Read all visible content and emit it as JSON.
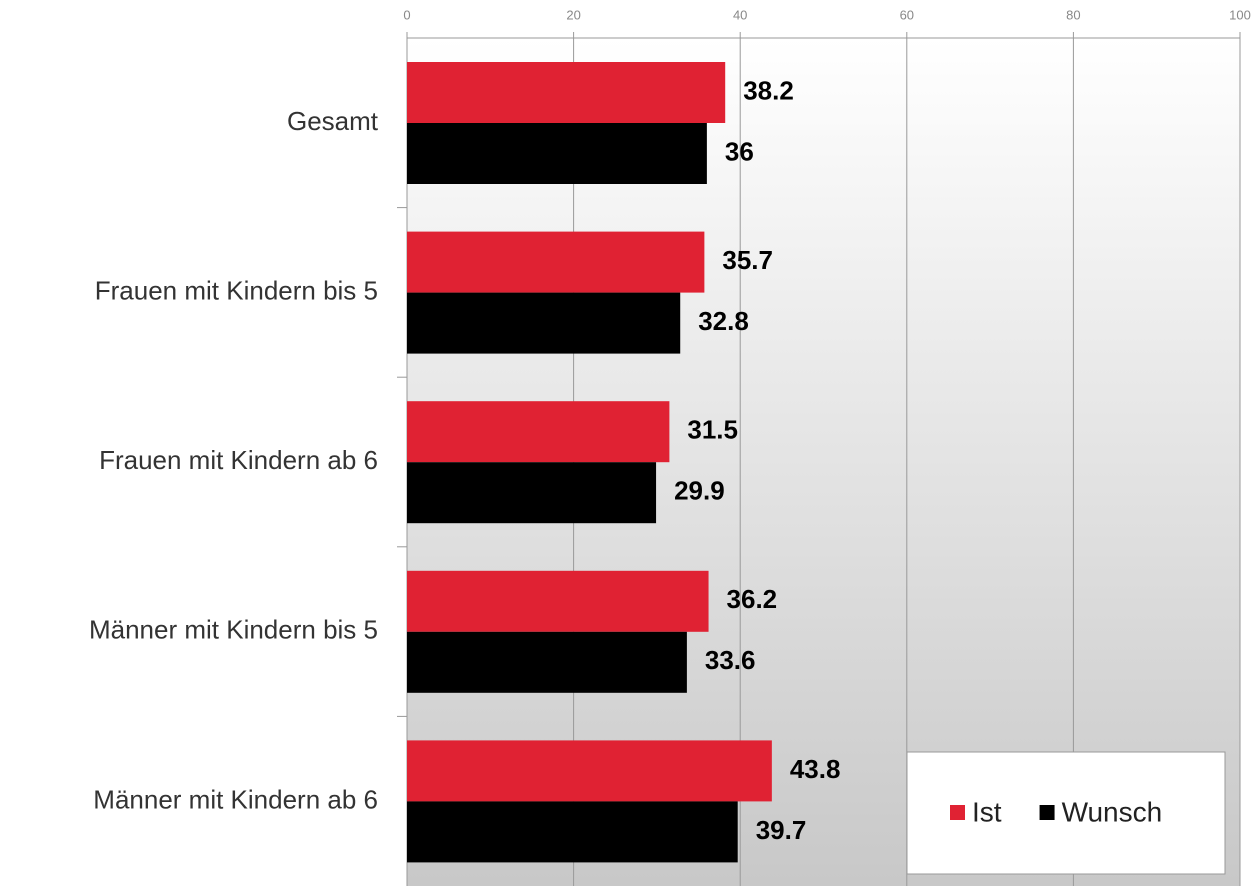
{
  "chart_data": {
    "type": "hbar",
    "categories": [
      "Gesamt",
      "Frauen mit Kindern bis 5",
      "Frauen mit Kindern ab 6",
      "Männer mit Kindern bis 5",
      "Männer mit Kindern ab 6"
    ],
    "series": [
      {
        "name": "Ist",
        "color": "#e02233",
        "values": [
          38.2,
          35.7,
          31.5,
          36.2,
          43.8
        ]
      },
      {
        "name": "Wunsch",
        "color": "#000000",
        "values": [
          36,
          32.8,
          29.9,
          33.6,
          39.7
        ]
      }
    ],
    "xlim": [
      0,
      100
    ],
    "xticks": [
      0,
      20,
      40,
      60,
      80,
      100
    ],
    "grid": true,
    "legend": "lower right"
  }
}
